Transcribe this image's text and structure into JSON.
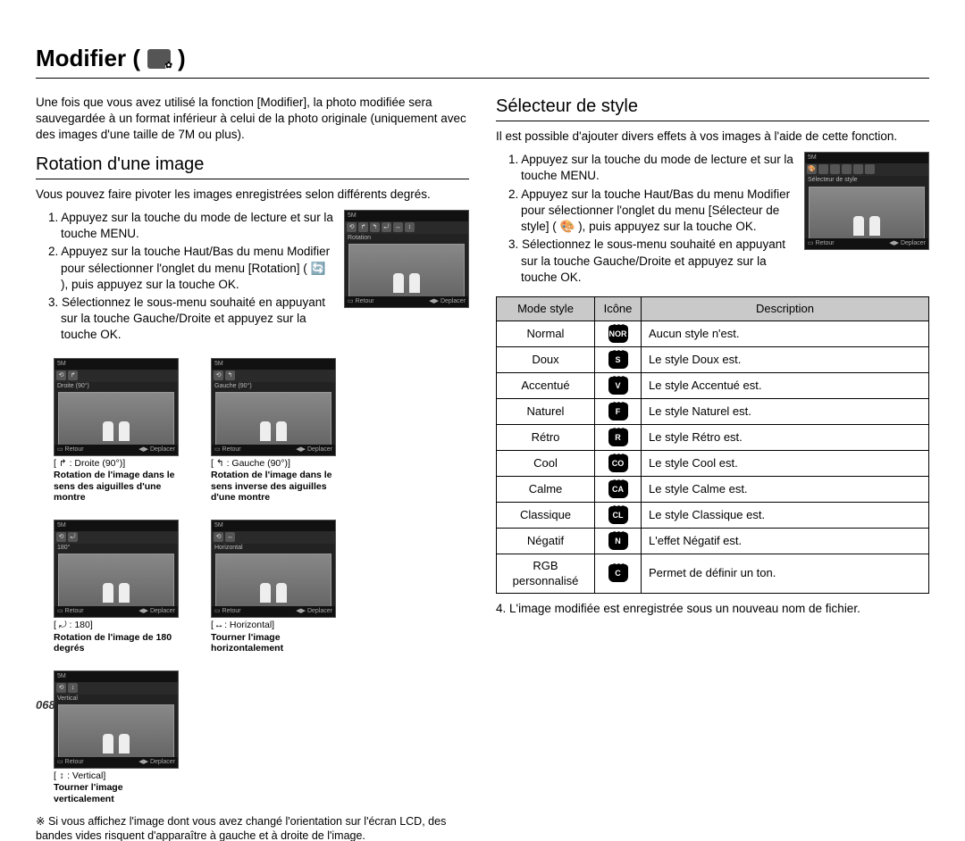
{
  "page_number": "068",
  "title": "Modifier (",
  "title_close": ")",
  "intro": "Une fois que vous avez utilisé la fonction [Modifier], la photo modifiée sera sauvegardée à un format inférieur à celui de la photo originale (uniquement avec des images d'une taille de 7M ou plus).",
  "rotation": {
    "heading": "Rotation d'une image",
    "lead": "Vous pouvez faire pivoter les images enregistrées selon différents degrés.",
    "steps": {
      "s1": "1. Appuyez sur la touche du mode de lecture et sur la touche MENU.",
      "s2": "2. Appuyez sur la touche Haut/Bas du menu Modifier pour sélectionner l'onglet du menu [Rotation] ( 🔄 ), puis appuyez sur la touche OK.",
      "s3": "3. Sélectionnez le sous-menu souhaité en appuyant sur la touche Gauche/Droite et appuyez sur la touche OK."
    },
    "screen": {
      "resolution": "5M",
      "menu_label": "Rotation",
      "back": "Retour",
      "move": "Deplacer"
    },
    "thumbs": [
      {
        "dir": "↱",
        "dir_label": ": Droite (90°)]",
        "screen_label": "Droite (90°)",
        "desc": "Rotation de l'image dans le sens des aiguilles d'une montre"
      },
      {
        "dir": "↰",
        "dir_label": ": Gauche (90°)]",
        "screen_label": "Gauche (90°)",
        "desc": "Rotation de l'image dans le sens inverse des aiguilles d'une montre"
      },
      {
        "dir": "⤾",
        "dir_label": ": 180]",
        "screen_label": "180°",
        "desc": "Rotation de l'image de 180 degrés"
      },
      {
        "dir": "↔",
        "dir_label": ": Horizontal]",
        "screen_label": "Horizontal",
        "desc": "Tourner l'image horizontalement"
      },
      {
        "dir": "↕",
        "dir_label": ": Vertical]",
        "screen_label": "Vertical",
        "desc": "Tourner l'image verticalement"
      }
    ],
    "note": "※ Si vous affichez l'image dont vous avez changé l'orientation sur l'écran LCD, des bandes vides risquent d'apparaître à gauche et à droite de l'image."
  },
  "style": {
    "heading": "Sélecteur de style",
    "lead": "Il est possible d'ajouter divers effets à vos images à l'aide de cette fonction.",
    "steps": {
      "s1": "1. Appuyez sur la touche du mode de lecture et sur la touche MENU.",
      "s2": "2. Appuyez sur la touche Haut/Bas du menu Modifier pour sélectionner l'onglet du menu [Sélecteur de style] ( 🎨 ), puis appuyez sur la touche OK.",
      "s3": "3. Sélectionnez le sous-menu souhaité en appuyant sur la touche Gauche/Droite et appuyez sur la touche OK."
    },
    "screen": {
      "resolution": "5M",
      "menu_label": "Sélecteur de style",
      "back": "Retour",
      "move": "Deplacer"
    },
    "table": {
      "headers": {
        "mode": "Mode style",
        "icon": "Icône",
        "desc": "Description"
      },
      "rows": [
        {
          "mode": "Normal",
          "icon": "NOR",
          "desc": "Aucun style n'est."
        },
        {
          "mode": "Doux",
          "icon": "S",
          "desc": "Le style Doux est."
        },
        {
          "mode": "Accentué",
          "icon": "V",
          "desc": "Le style Accentué est."
        },
        {
          "mode": "Naturel",
          "icon": "F",
          "desc": "Le style Naturel est."
        },
        {
          "mode": "Rétro",
          "icon": "R",
          "desc": "Le style Rétro est."
        },
        {
          "mode": "Cool",
          "icon": "CO",
          "desc": "Le style Cool est."
        },
        {
          "mode": "Calme",
          "icon": "CA",
          "desc": "Le style Calme est."
        },
        {
          "mode": "Classique",
          "icon": "CL",
          "desc": "Le style Classique est."
        },
        {
          "mode": "Négatif",
          "icon": "N",
          "desc": "L'effet Négatif est."
        },
        {
          "mode": "RGB personnalisé",
          "icon": "C",
          "desc": "Permet de définir un ton."
        }
      ]
    },
    "after": "4. L'image modifiée est enregistrée sous un nouveau nom de fichier."
  }
}
